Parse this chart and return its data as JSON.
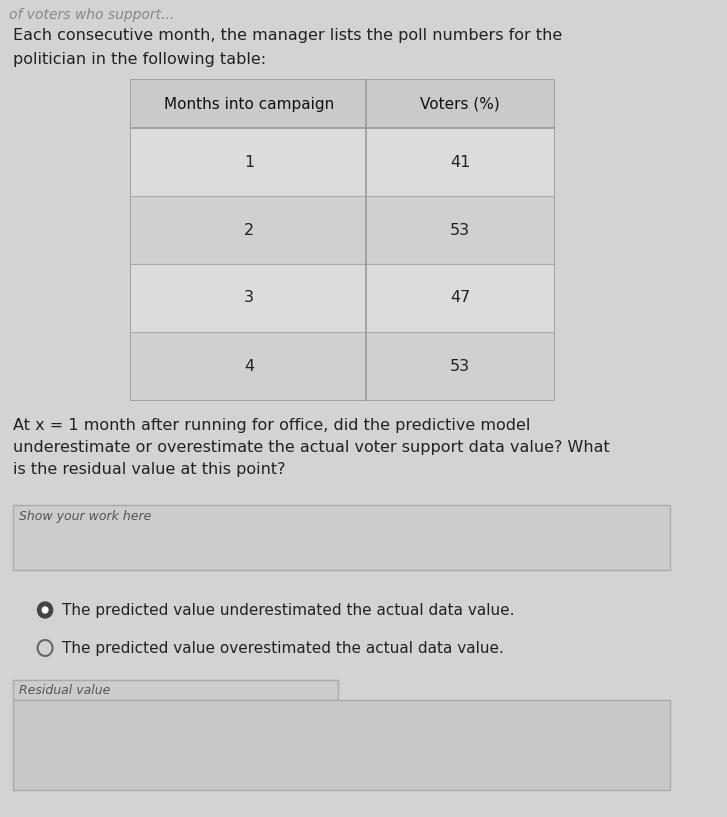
{
  "top_cut_text": "of voters who support...",
  "intro_text_line1": "Each consecutive month, the manager lists the poll numbers for the",
  "intro_text_line2": "politician in the following table:",
  "table_header": [
    "Months into campaign",
    "Voters (%)"
  ],
  "table_data": [
    [
      1,
      41
    ],
    [
      2,
      53
    ],
    [
      3,
      47
    ],
    [
      4,
      53
    ]
  ],
  "question_line1": "At x = 1 month after running for office, did the predictive model",
  "question_line2": "underestimate or overestimate the actual voter support data value? What",
  "question_line3": "is the residual value at this point?",
  "show_work_label": "Show your work here",
  "option1": "The predicted value underestimated the actual data value.",
  "option2": "The predicted value overestimated the actual data value.",
  "residual_label": "Residual value",
  "bg_color": "#d4d2d2",
  "table_outer_bg": "#d0cfcf",
  "table_header_bg": "#cacaca",
  "cell_even_bg": "#dcdcdc",
  "cell_odd_bg": "#d0d0d0",
  "text_color": "#222222",
  "header_text_color": "#111111",
  "radio_filled_color": "#444444",
  "radio_empty_color": "#666666",
  "show_work_bg": "#cccccc",
  "show_work_border": "#aaaaaa",
  "residual_label_bg": "#cccccc",
  "residual_label_border": "#aaaaaa",
  "answer_box_bg": "#c8c8c8",
  "answer_box_border": "#aaaaaa",
  "table_border_color": "#999999",
  "table_line_color": "#aaaaaa"
}
